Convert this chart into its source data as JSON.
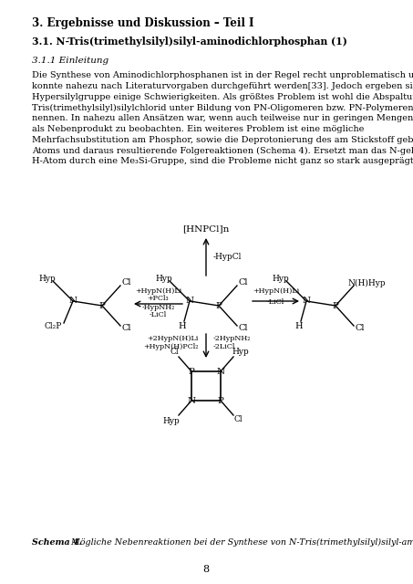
{
  "title": "3. Ergebnisse und Diskussion – Teil I",
  "subtitle": "3.1. N-Tris(trimethylsilyl)silyl-aminodichlorphosphan (1)",
  "section": "3.1.1 Einleitung",
  "body_lines": [
    "Die Synthese von Aminodichlorphosphanen ist in der Regel recht unproblematisch und",
    "konnte nahezu nach Literaturvorgaben durchgeführt werden[33]. Jedoch ergeben sich durch die",
    "Hypersilylgruppe einige Schwierigkeiten. Als größtes Problem ist wohl die Abspaltung von",
    "Tris(trimethylsilyl)silylchlorid unter Bildung von PN-Oligomeren bzw. PN-Polymeren zu",
    "nennen. In nahezu allen Ansätzen war, wenn auch teilweise nur in geringen Mengen, Hyp-Cl",
    "als Nebenprodukt zu beobachten. Ein weiteres Problem ist eine mögliche",
    "Mehrfachsubstitution am Phosphor, sowie die Deprotonierung des am Stickstoff gebunden H-",
    "Atoms und daraus resultierende Folgereaktionen (Schema 4). Ersetzt man das N-gebundene",
    "H-Atom durch eine Me₃Si-Gruppe, sind die Probleme nicht ganz so stark ausgeprägt."
  ],
  "caption_bold": "Schema 4.",
  "caption_italic": " Mögliche Nebenreaktionen bei der Synthese von N-Tris(trimethylsilyl)silyl-aminodichlorphosphan",
  "page_number": "8",
  "bg_color": "#ffffff",
  "text_color": "#000000"
}
